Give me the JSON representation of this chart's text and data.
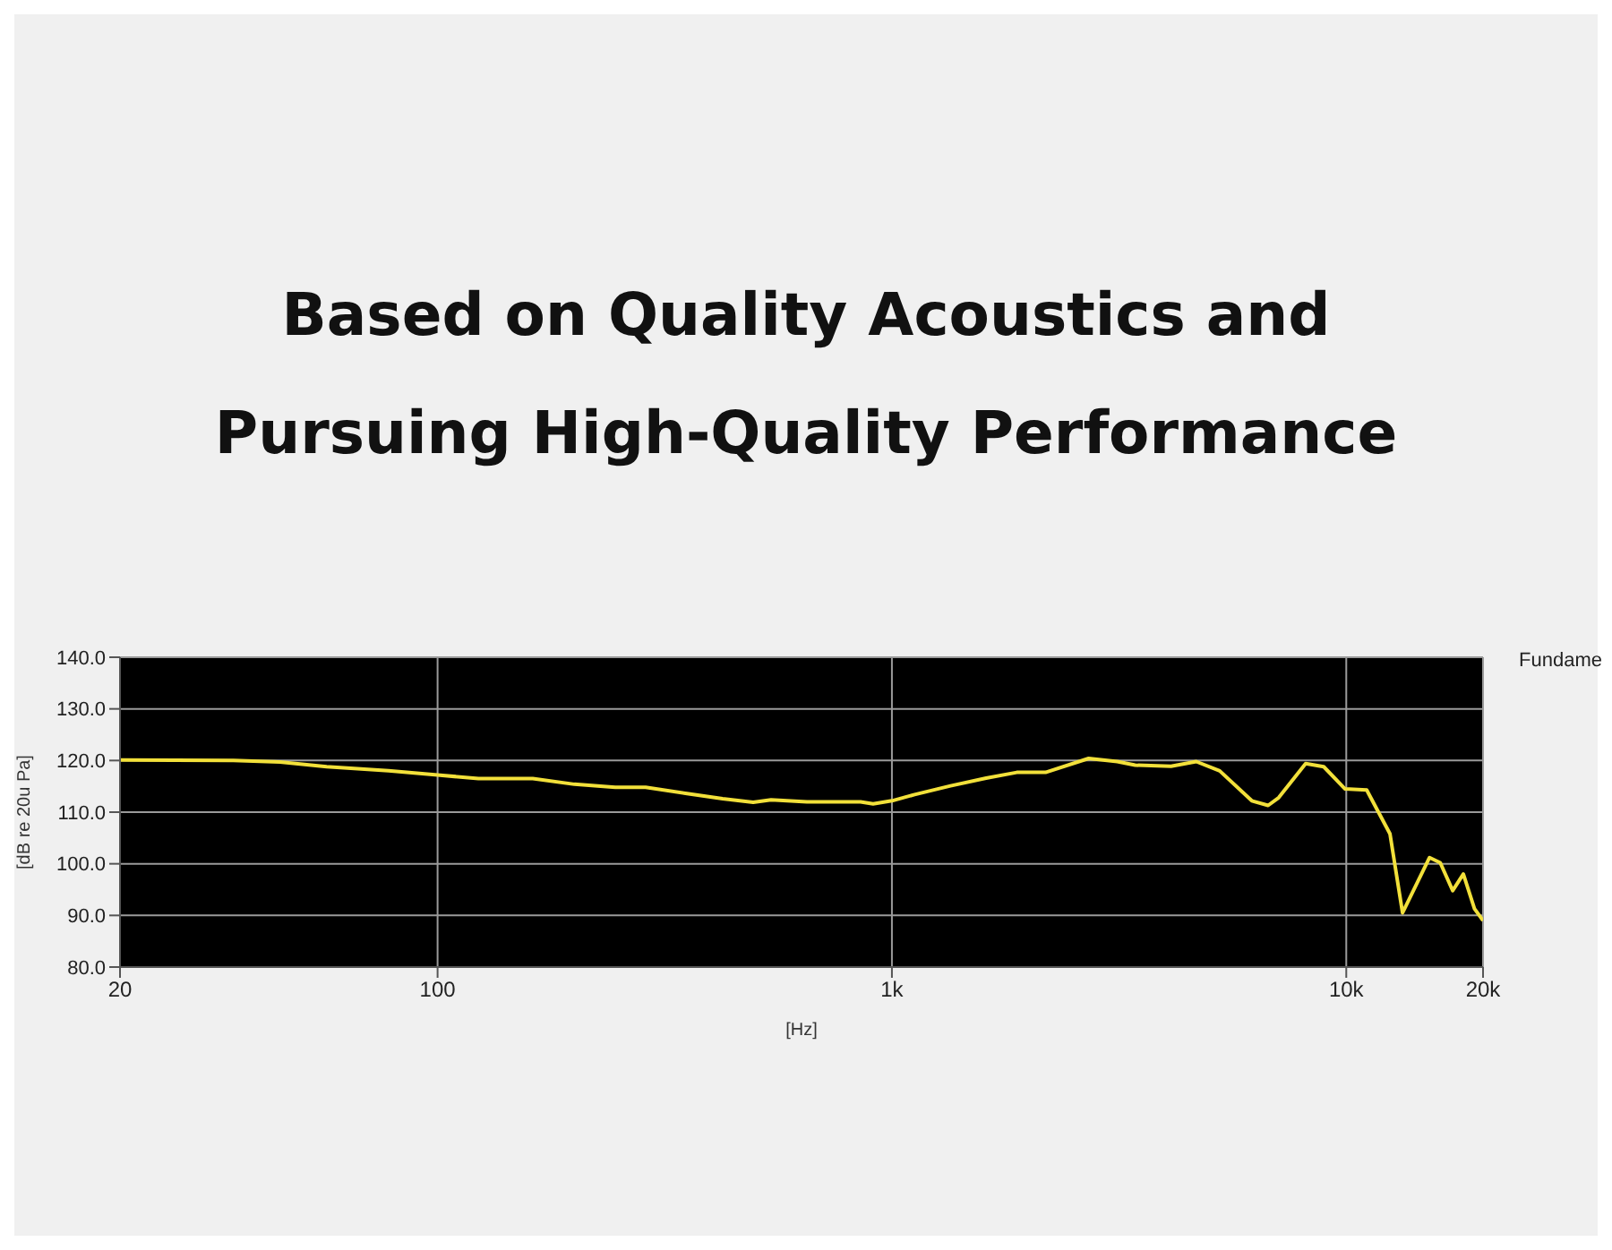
{
  "chart_data": {
    "type": "line",
    "title": "Based on Quality Acoustics and\nPursuing High-Quality Performance",
    "xlabel": "[Hz]",
    "ylabel": "[dB re 20u Pa]",
    "annotations": [
      "Fundame"
    ],
    "log": "x",
    "grid": true,
    "marker": "none",
    "line_style": "solid",
    "xlim": [
      20,
      20000
    ],
    "xticks": [
      20,
      100,
      {
        "value": 1000,
        "label": "1k"
      },
      {
        "value": 10000,
        "label": "10k"
      },
      {
        "value": 20000,
        "label": "20k"
      }
    ],
    "ylim": [
      80,
      140
    ],
    "yticks": [
      {
        "value": 80,
        "label": "80.0"
      },
      {
        "value": 90,
        "label": "90.0"
      },
      {
        "value": 100,
        "label": "100.0"
      },
      {
        "value": 110,
        "label": "110.0"
      },
      {
        "value": 120,
        "label": "120.0"
      },
      {
        "value": 130,
        "label": "130.0"
      },
      {
        "value": 140,
        "label": "140.0"
      }
    ],
    "x": [
      20,
      35.5,
      45,
      57,
      78,
      100,
      123,
      162,
      200,
      246,
      287,
      354,
      424,
      495,
      542,
      650,
      853,
      909,
      1000,
      1122,
      1346,
      1612,
      1883,
      2178,
      2710,
      3133,
      3430,
      4115,
      4675,
      5265,
      6196,
      6730,
      7100,
      8140,
      8920,
      9940,
      11090,
      12480,
      13300,
      15250,
      16100,
      17150,
      18100,
      19150,
      20000
    ],
    "series": [
      {
        "color": "#f2e03a",
        "values": [
          120.1,
          120,
          119.7,
          118.8,
          118,
          117.2,
          116.5,
          116.5,
          115.4,
          114.8,
          114.8,
          113.6,
          112.6,
          111.9,
          112.4,
          112,
          112,
          111.6,
          112.2,
          113.4,
          115.1,
          116.6,
          117.7,
          117.7,
          120.4,
          119.8,
          119.1,
          118.9,
          119.8,
          118,
          112.2,
          111.3,
          112.8,
          119.4,
          118.8,
          114.5,
          114.3,
          105.8,
          90.5,
          101.2,
          100.2,
          94.8,
          98,
          91.3,
          89
        ]
      }
    ]
  }
}
